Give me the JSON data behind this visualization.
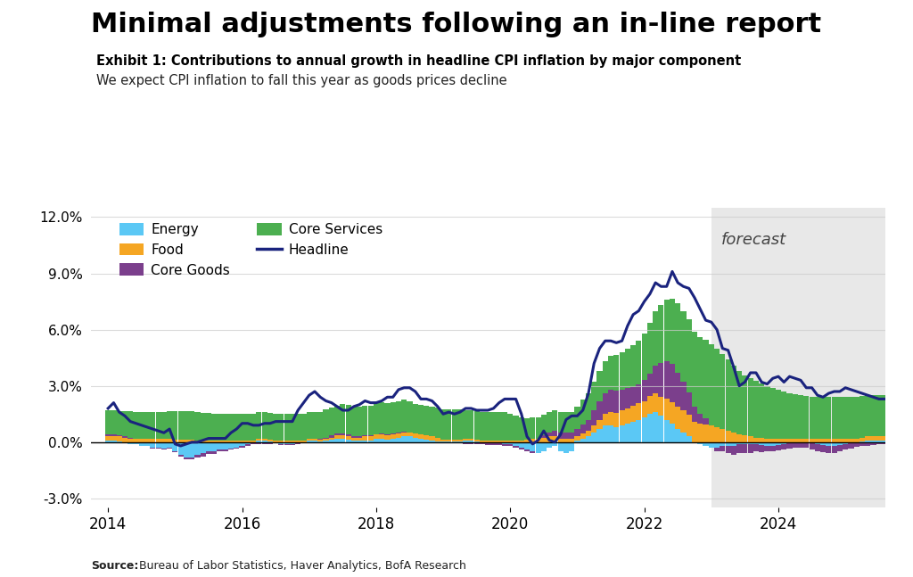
{
  "title": "Minimal adjustments following an in-line report",
  "exhibit_title": "Exhibit 1: Contributions to annual growth in headline CPI inflation by major component",
  "subtitle": "We expect CPI inflation to fall this year as goods prices decline",
  "source_bold": "Source:",
  "source_normal": "  Bureau of Labor Statistics, Haver Analytics, BofA Research",
  "forecast_start_year": 2023.0,
  "xlim": [
    2013.75,
    2025.6
  ],
  "ylim": [
    -3.5,
    12.5
  ],
  "yticks": [
    -3.0,
    0.0,
    3.0,
    6.0,
    9.0,
    12.0
  ],
  "colors": {
    "energy": "#5BC8F5",
    "food": "#F5A623",
    "core_goods": "#7B3F8C",
    "core_services": "#4CAF50",
    "headline": "#1A237E"
  },
  "bg_forecast": "#E8E8E8",
  "accent_color": "#1565C0",
  "energy": [
    0.1,
    0.1,
    0.05,
    0.0,
    -0.1,
    -0.1,
    -0.2,
    -0.2,
    -0.3,
    -0.3,
    -0.35,
    -0.3,
    -0.5,
    -0.7,
    -0.8,
    -0.8,
    -0.7,
    -0.6,
    -0.5,
    -0.5,
    -0.4,
    -0.4,
    -0.35,
    -0.3,
    -0.2,
    -0.1,
    0.0,
    0.1,
    0.1,
    0.05,
    0.0,
    -0.1,
    -0.1,
    -0.1,
    -0.05,
    0.0,
    0.1,
    0.1,
    0.05,
    0.1,
    0.15,
    0.2,
    0.2,
    0.15,
    0.1,
    0.1,
    0.1,
    0.1,
    0.2,
    0.2,
    0.15,
    0.2,
    0.25,
    0.3,
    0.3,
    0.25,
    0.2,
    0.15,
    0.1,
    0.05,
    0.05,
    0.05,
    0.05,
    0.05,
    0.1,
    0.1,
    0.05,
    0.0,
    -0.05,
    -0.05,
    -0.05,
    -0.1,
    -0.1,
    -0.2,
    -0.3,
    -0.4,
    -0.5,
    -0.6,
    -0.5,
    -0.3,
    -0.2,
    -0.5,
    -0.6,
    -0.5,
    0.1,
    0.2,
    0.3,
    0.5,
    0.7,
    0.9,
    0.9,
    0.8,
    0.9,
    1.0,
    1.1,
    1.2,
    1.3,
    1.5,
    1.6,
    1.4,
    1.2,
    1.0,
    0.7,
    0.5,
    0.3,
    0.0,
    -0.1,
    -0.2,
    -0.3,
    -0.3,
    -0.2,
    -0.2,
    -0.2,
    -0.1,
    -0.1,
    -0.1,
    -0.1,
    -0.15,
    -0.2,
    -0.2,
    -0.15,
    -0.1,
    -0.05,
    0.0,
    0.0,
    0.0,
    -0.05,
    -0.1,
    -0.15,
    -0.2,
    -0.2,
    -0.15,
    -0.1,
    -0.05,
    0.0,
    0.05,
    0.1,
    0.1,
    0.1,
    0.1,
    0.1,
    0.1,
    0.1,
    0.1
  ],
  "food": [
    0.2,
    0.2,
    0.25,
    0.25,
    0.2,
    0.2,
    0.2,
    0.2,
    0.2,
    0.2,
    0.2,
    0.2,
    0.15,
    0.15,
    0.15,
    0.15,
    0.1,
    0.1,
    0.1,
    0.1,
    0.1,
    0.1,
    0.1,
    0.1,
    0.1,
    0.1,
    0.1,
    0.1,
    0.1,
    0.1,
    0.1,
    0.1,
    0.1,
    0.1,
    0.1,
    0.1,
    0.1,
    0.1,
    0.1,
    0.1,
    0.1,
    0.15,
    0.15,
    0.15,
    0.15,
    0.15,
    0.2,
    0.2,
    0.2,
    0.2,
    0.2,
    0.2,
    0.2,
    0.2,
    0.2,
    0.2,
    0.2,
    0.2,
    0.2,
    0.2,
    0.1,
    0.1,
    0.1,
    0.1,
    0.1,
    0.1,
    0.1,
    0.1,
    0.1,
    0.1,
    0.1,
    0.1,
    0.1,
    0.1,
    0.1,
    0.15,
    0.2,
    0.2,
    0.25,
    0.3,
    0.3,
    0.2,
    0.2,
    0.2,
    0.2,
    0.25,
    0.3,
    0.4,
    0.5,
    0.6,
    0.7,
    0.75,
    0.8,
    0.8,
    0.85,
    0.9,
    0.9,
    0.95,
    1.0,
    1.0,
    1.1,
    1.15,
    1.2,
    1.2,
    1.15,
    1.1,
    1.0,
    0.95,
    0.9,
    0.8,
    0.7,
    0.6,
    0.5,
    0.4,
    0.35,
    0.3,
    0.25,
    0.25,
    0.2,
    0.2,
    0.2,
    0.2,
    0.2,
    0.2,
    0.2,
    0.2,
    0.2,
    0.2,
    0.2,
    0.2,
    0.2,
    0.2,
    0.2,
    0.2,
    0.2,
    0.2,
    0.2,
    0.2,
    0.2,
    0.2,
    0.2,
    0.2,
    0.2,
    0.2
  ],
  "core_goods": [
    0.1,
    0.1,
    0.05,
    0.05,
    0.05,
    0.0,
    0.0,
    0.0,
    -0.05,
    -0.05,
    -0.05,
    -0.05,
    -0.05,
    -0.05,
    -0.1,
    -0.1,
    -0.1,
    -0.15,
    -0.15,
    -0.15,
    -0.1,
    -0.1,
    -0.05,
    -0.05,
    -0.1,
    -0.1,
    -0.1,
    -0.1,
    -0.1,
    -0.1,
    -0.05,
    -0.05,
    -0.05,
    -0.05,
    -0.05,
    -0.05,
    0.0,
    0.0,
    0.05,
    0.05,
    0.1,
    0.1,
    0.1,
    0.1,
    0.05,
    0.05,
    0.05,
    0.05,
    0.0,
    0.05,
    0.05,
    0.05,
    0.05,
    0.05,
    0.0,
    0.0,
    0.0,
    0.0,
    -0.05,
    -0.05,
    -0.05,
    -0.05,
    -0.05,
    -0.05,
    -0.1,
    -0.1,
    -0.1,
    -0.1,
    -0.1,
    -0.1,
    -0.1,
    -0.1,
    -0.1,
    -0.1,
    -0.1,
    -0.1,
    -0.1,
    0.0,
    0.1,
    0.2,
    0.3,
    0.3,
    0.3,
    0.3,
    0.4,
    0.5,
    0.6,
    0.8,
    1.0,
    1.1,
    1.2,
    1.2,
    1.1,
    1.1,
    1.0,
    1.0,
    1.1,
    1.2,
    1.5,
    1.8,
    2.0,
    2.0,
    1.8,
    1.5,
    1.2,
    0.8,
    0.5,
    0.3,
    0.0,
    -0.2,
    -0.3,
    -0.4,
    -0.5,
    -0.5,
    -0.5,
    -0.5,
    -0.4,
    -0.4,
    -0.3,
    -0.3,
    -0.3,
    -0.3,
    -0.3,
    -0.3,
    -0.3,
    -0.3,
    -0.35,
    -0.4,
    -0.4,
    -0.4,
    -0.4,
    -0.35,
    -0.3,
    -0.3,
    -0.25,
    -0.2,
    -0.2,
    -0.15,
    -0.1,
    -0.1,
    -0.1,
    -0.1,
    -0.1,
    -0.1
  ],
  "core_services": [
    1.3,
    1.3,
    1.3,
    1.35,
    1.4,
    1.4,
    1.4,
    1.4,
    1.4,
    1.4,
    1.4,
    1.45,
    1.5,
    1.5,
    1.5,
    1.5,
    1.5,
    1.45,
    1.45,
    1.4,
    1.4,
    1.4,
    1.4,
    1.4,
    1.4,
    1.4,
    1.4,
    1.4,
    1.4,
    1.4,
    1.4,
    1.4,
    1.4,
    1.4,
    1.4,
    1.4,
    1.4,
    1.4,
    1.4,
    1.5,
    1.5,
    1.5,
    1.6,
    1.6,
    1.6,
    1.6,
    1.6,
    1.6,
    1.7,
    1.7,
    1.7,
    1.7,
    1.7,
    1.7,
    1.7,
    1.6,
    1.6,
    1.6,
    1.6,
    1.6,
    1.6,
    1.6,
    1.6,
    1.6,
    1.5,
    1.5,
    1.5,
    1.5,
    1.5,
    1.5,
    1.5,
    1.5,
    1.4,
    1.3,
    1.2,
    1.1,
    1.1,
    1.1,
    1.1,
    1.1,
    1.1,
    1.1,
    1.1,
    1.1,
    1.2,
    1.3,
    1.4,
    1.5,
    1.6,
    1.7,
    1.8,
    1.9,
    2.0,
    2.1,
    2.2,
    2.3,
    2.5,
    2.7,
    2.9,
    3.1,
    3.3,
    3.5,
    3.7,
    3.8,
    3.9,
    4.0,
    4.1,
    4.2,
    4.3,
    4.2,
    4.0,
    3.8,
    3.6,
    3.4,
    3.2,
    3.1,
    3.0,
    2.9,
    2.8,
    2.7,
    2.6,
    2.5,
    2.4,
    2.35,
    2.3,
    2.25,
    2.2,
    2.2,
    2.2,
    2.2,
    2.2,
    2.2,
    2.2,
    2.2,
    2.2,
    2.2,
    2.2,
    2.2,
    2.2,
    2.2,
    2.2,
    2.2,
    2.2,
    2.2
  ],
  "headline": [
    1.8,
    2.1,
    1.6,
    1.4,
    1.1,
    1.0,
    0.9,
    0.8,
    0.7,
    0.6,
    0.5,
    0.7,
    -0.1,
    -0.2,
    -0.1,
    0.0,
    0.0,
    0.1,
    0.2,
    0.2,
    0.2,
    0.2,
    0.5,
    0.7,
    1.0,
    1.0,
    0.9,
    0.9,
    1.0,
    1.0,
    1.1,
    1.1,
    1.1,
    1.1,
    1.7,
    2.1,
    2.5,
    2.7,
    2.4,
    2.2,
    2.1,
    1.9,
    1.7,
    1.7,
    1.9,
    2.0,
    2.2,
    2.1,
    2.1,
    2.2,
    2.4,
    2.4,
    2.8,
    2.9,
    2.9,
    2.7,
    2.3,
    2.3,
    2.2,
    1.9,
    1.5,
    1.6,
    1.5,
    1.6,
    1.8,
    1.8,
    1.7,
    1.7,
    1.7,
    1.8,
    2.1,
    2.3,
    2.3,
    2.3,
    1.5,
    0.3,
    -0.1,
    0.1,
    0.6,
    0.1,
    0.0,
    0.4,
    1.2,
    1.4,
    1.4,
    1.7,
    2.6,
    4.2,
    5.0,
    5.4,
    5.4,
    5.3,
    5.4,
    6.2,
    6.8,
    7.0,
    7.5,
    7.9,
    8.5,
    8.3,
    8.3,
    9.1,
    8.5,
    8.3,
    8.2,
    7.7,
    7.1,
    6.5,
    6.4,
    6.0,
    5.0,
    4.9,
    4.0,
    3.0,
    3.2,
    3.7,
    3.7,
    3.2,
    3.1,
    3.4,
    3.5,
    3.2,
    3.5,
    3.4,
    3.3,
    2.9,
    2.9,
    2.5,
    2.4,
    2.6,
    2.7,
    2.7,
    2.9,
    2.8,
    2.7,
    2.6,
    2.5,
    2.4,
    2.3,
    2.3,
    2.3,
    2.3,
    2.3,
    2.3
  ]
}
